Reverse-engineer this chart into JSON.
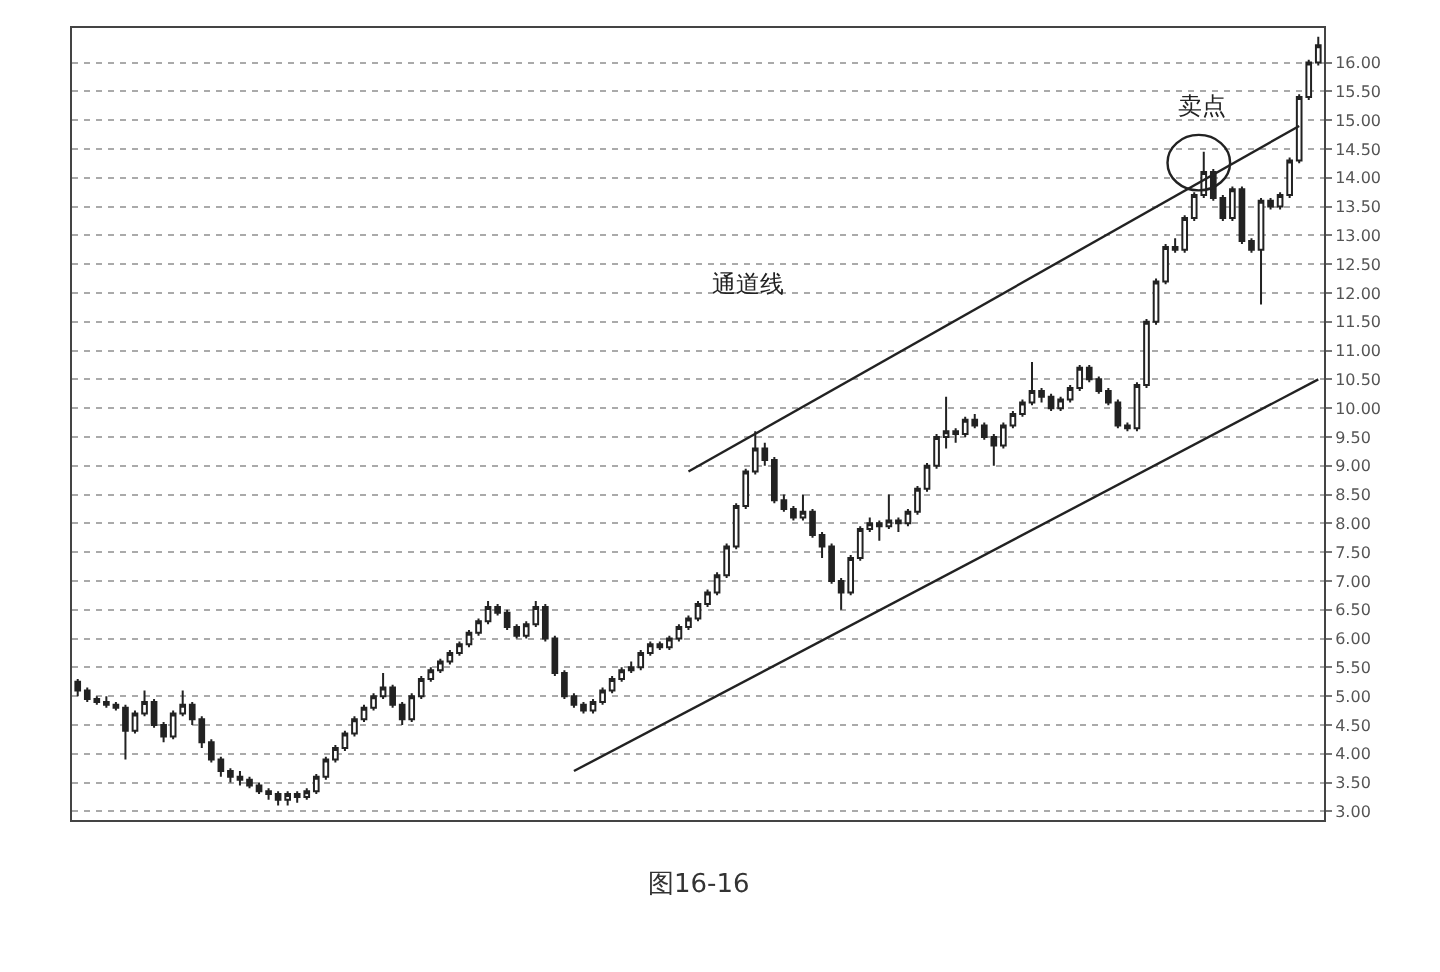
{
  "chart_data": {
    "type": "candlestick",
    "categories": [
      null,
      null,
      null,
      null,
      null,
      null,
      null,
      null,
      null,
      null,
      null,
      null,
      null,
      null,
      null,
      null,
      null,
      null,
      null,
      null,
      null,
      null,
      null,
      null,
      null,
      null,
      null,
      null,
      null,
      null,
      null,
      null,
      null,
      null,
      null,
      null,
      null,
      null,
      null,
      null,
      null,
      null,
      null,
      null,
      null,
      null,
      null,
      null,
      null,
      null,
      null,
      null,
      null,
      null,
      null,
      null,
      null,
      null,
      null,
      null,
      null,
      null,
      null,
      null,
      null,
      null,
      null,
      null,
      null,
      null,
      null,
      null,
      null,
      null,
      null,
      null,
      null,
      null,
      null,
      null,
      null,
      null,
      null,
      null,
      null,
      null,
      null,
      null,
      null,
      null,
      null,
      null,
      null,
      null,
      null,
      null,
      null,
      null,
      null,
      null,
      null,
      null,
      null,
      null,
      null,
      null,
      null,
      null,
      null,
      null,
      null,
      null,
      null,
      null,
      null,
      null,
      null,
      null,
      null,
      null,
      null,
      null,
      null,
      null,
      null,
      null,
      null,
      null,
      null,
      null,
      null
    ],
    "series": [
      {
        "color": "#222222",
        "ohlc": [
          [
            5.25,
            5.3,
            5.0,
            5.1
          ],
          [
            5.1,
            5.15,
            4.9,
            4.95
          ],
          [
            4.95,
            5.0,
            4.85,
            4.9
          ],
          [
            4.9,
            5.0,
            4.8,
            4.85
          ],
          [
            4.85,
            4.9,
            4.75,
            4.8
          ],
          [
            4.8,
            4.85,
            3.9,
            4.4
          ],
          [
            4.4,
            4.75,
            4.35,
            4.7
          ],
          [
            4.7,
            5.1,
            4.65,
            4.9
          ],
          [
            4.9,
            4.95,
            4.45,
            4.5
          ],
          [
            4.5,
            4.55,
            4.2,
            4.3
          ],
          [
            4.3,
            4.75,
            4.25,
            4.7
          ],
          [
            4.7,
            5.1,
            4.65,
            4.85
          ],
          [
            4.85,
            4.9,
            4.5,
            4.6
          ],
          [
            4.6,
            4.65,
            4.1,
            4.2
          ],
          [
            4.2,
            4.25,
            3.85,
            3.9
          ],
          [
            3.9,
            3.95,
            3.6,
            3.7
          ],
          [
            3.7,
            3.75,
            3.5,
            3.6
          ],
          [
            3.6,
            3.7,
            3.45,
            3.55
          ],
          [
            3.55,
            3.6,
            3.4,
            3.45
          ],
          [
            3.45,
            3.5,
            3.3,
            3.35
          ],
          [
            3.35,
            3.4,
            3.2,
            3.3
          ],
          [
            3.3,
            3.35,
            3.1,
            3.2
          ],
          [
            3.2,
            3.35,
            3.1,
            3.3
          ],
          [
            3.3,
            3.35,
            3.15,
            3.25
          ],
          [
            3.25,
            3.4,
            3.2,
            3.35
          ],
          [
            3.35,
            3.65,
            3.3,
            3.6
          ],
          [
            3.6,
            3.95,
            3.55,
            3.9
          ],
          [
            3.9,
            4.15,
            3.85,
            4.1
          ],
          [
            4.1,
            4.4,
            4.05,
            4.35
          ],
          [
            4.35,
            4.65,
            4.3,
            4.6
          ],
          [
            4.6,
            4.85,
            4.55,
            4.8
          ],
          [
            4.8,
            5.05,
            4.75,
            5.0
          ],
          [
            5.0,
            5.4,
            4.95,
            5.15
          ],
          [
            5.15,
            5.2,
            4.8,
            4.85
          ],
          [
            4.85,
            4.9,
            4.5,
            4.6
          ],
          [
            4.6,
            5.05,
            4.55,
            5.0
          ],
          [
            5.0,
            5.35,
            4.95,
            5.3
          ],
          [
            5.3,
            5.5,
            5.25,
            5.45
          ],
          [
            5.45,
            5.65,
            5.4,
            5.6
          ],
          [
            5.6,
            5.8,
            5.55,
            5.75
          ],
          [
            5.75,
            5.95,
            5.7,
            5.9
          ],
          [
            5.9,
            6.15,
            5.85,
            6.1
          ],
          [
            6.1,
            6.35,
            6.05,
            6.3
          ],
          [
            6.3,
            6.65,
            6.25,
            6.55
          ],
          [
            6.55,
            6.6,
            6.4,
            6.45
          ],
          [
            6.45,
            6.5,
            6.15,
            6.2
          ],
          [
            6.2,
            6.25,
            6.0,
            6.05
          ],
          [
            6.05,
            6.3,
            6.0,
            6.25
          ],
          [
            6.25,
            6.65,
            6.2,
            6.55
          ],
          [
            6.55,
            6.6,
            5.95,
            6.0
          ],
          [
            6.0,
            6.05,
            5.35,
            5.4
          ],
          [
            5.4,
            5.45,
            4.95,
            5.0
          ],
          [
            5.0,
            5.05,
            4.8,
            4.85
          ],
          [
            4.85,
            4.9,
            4.7,
            4.75
          ],
          [
            4.75,
            4.95,
            4.7,
            4.9
          ],
          [
            4.9,
            5.15,
            4.85,
            5.1
          ],
          [
            5.1,
            5.35,
            5.05,
            5.3
          ],
          [
            5.3,
            5.5,
            5.25,
            5.45
          ],
          [
            5.45,
            5.6,
            5.4,
            5.5
          ],
          [
            5.5,
            5.8,
            5.45,
            5.75
          ],
          [
            5.75,
            5.95,
            5.7,
            5.9
          ],
          [
            5.9,
            5.95,
            5.8,
            5.85
          ],
          [
            5.85,
            6.05,
            5.8,
            6.0
          ],
          [
            6.0,
            6.25,
            5.95,
            6.2
          ],
          [
            6.2,
            6.4,
            6.15,
            6.35
          ],
          [
            6.35,
            6.65,
            6.3,
            6.6
          ],
          [
            6.6,
            6.85,
            6.55,
            6.8
          ],
          [
            6.8,
            7.15,
            6.75,
            7.1
          ],
          [
            7.1,
            7.65,
            7.05,
            7.6
          ],
          [
            7.6,
            8.35,
            7.55,
            8.3
          ],
          [
            8.3,
            8.95,
            8.25,
            8.9
          ],
          [
            8.9,
            9.6,
            8.85,
            9.3
          ],
          [
            9.3,
            9.4,
            9.0,
            9.1
          ],
          [
            9.1,
            9.15,
            8.35,
            8.4
          ],
          [
            8.4,
            8.5,
            8.2,
            8.25
          ],
          [
            8.25,
            8.3,
            8.05,
            8.1
          ],
          [
            8.1,
            8.5,
            8.05,
            8.2
          ],
          [
            8.2,
            8.25,
            7.75,
            7.8
          ],
          [
            7.8,
            7.85,
            7.4,
            7.6
          ],
          [
            7.6,
            7.65,
            6.95,
            7.0
          ],
          [
            7.0,
            7.05,
            6.5,
            6.8
          ],
          [
            6.8,
            7.45,
            6.75,
            7.4
          ],
          [
            7.4,
            7.95,
            7.35,
            7.9
          ],
          [
            7.9,
            8.1,
            7.85,
            8.0
          ],
          [
            8.0,
            8.05,
            7.7,
            7.95
          ],
          [
            7.95,
            8.5,
            7.9,
            8.05
          ],
          [
            8.05,
            8.1,
            7.85,
            8.0
          ],
          [
            8.0,
            8.25,
            7.95,
            8.2
          ],
          [
            8.2,
            8.65,
            8.15,
            8.6
          ],
          [
            8.6,
            9.05,
            8.55,
            9.0
          ],
          [
            9.0,
            9.55,
            8.95,
            9.5
          ],
          [
            9.5,
            10.2,
            9.3,
            9.6
          ],
          [
            9.6,
            9.65,
            9.4,
            9.55
          ],
          [
            9.55,
            9.85,
            9.5,
            9.8
          ],
          [
            9.8,
            9.9,
            9.65,
            9.7
          ],
          [
            9.7,
            9.75,
            9.45,
            9.5
          ],
          [
            9.5,
            9.55,
            9.0,
            9.35
          ],
          [
            9.35,
            9.75,
            9.3,
            9.7
          ],
          [
            9.7,
            9.95,
            9.65,
            9.9
          ],
          [
            9.9,
            10.15,
            9.85,
            10.1
          ],
          [
            10.1,
            10.8,
            10.05,
            10.3
          ],
          [
            10.3,
            10.35,
            10.1,
            10.2
          ],
          [
            10.2,
            10.25,
            9.95,
            10.0
          ],
          [
            10.0,
            10.2,
            9.95,
            10.15
          ],
          [
            10.15,
            10.4,
            10.1,
            10.35
          ],
          [
            10.35,
            10.75,
            10.3,
            10.7
          ],
          [
            10.7,
            10.75,
            10.45,
            10.5
          ],
          [
            10.5,
            10.55,
            10.25,
            10.3
          ],
          [
            10.3,
            10.35,
            10.05,
            10.1
          ],
          [
            10.1,
            10.15,
            9.65,
            9.7
          ],
          [
            9.7,
            9.75,
            9.6,
            9.65
          ],
          [
            9.65,
            10.45,
            9.6,
            10.4
          ],
          [
            10.4,
            11.55,
            10.35,
            11.5
          ],
          [
            11.5,
            12.25,
            11.45,
            12.2
          ],
          [
            12.2,
            12.85,
            12.15,
            12.8
          ],
          [
            12.8,
            12.95,
            12.7,
            12.75
          ],
          [
            12.75,
            13.35,
            12.7,
            13.3
          ],
          [
            13.3,
            13.75,
            13.25,
            13.7
          ],
          [
            13.7,
            14.45,
            13.65,
            14.1
          ],
          [
            14.1,
            14.15,
            13.6,
            13.65
          ],
          [
            13.65,
            13.7,
            13.25,
            13.3
          ],
          [
            13.3,
            13.85,
            13.25,
            13.8
          ],
          [
            13.8,
            13.85,
            12.85,
            12.9
          ],
          [
            12.9,
            12.95,
            12.7,
            12.75
          ],
          [
            12.75,
            13.65,
            11.8,
            13.6
          ],
          [
            13.6,
            13.65,
            13.45,
            13.5
          ],
          [
            13.5,
            13.75,
            13.45,
            13.7
          ],
          [
            13.7,
            14.35,
            13.65,
            14.3
          ],
          [
            14.3,
            15.45,
            14.25,
            15.4
          ],
          [
            15.4,
            16.05,
            15.35,
            16.0
          ],
          [
            16.0,
            16.45,
            15.95,
            16.3
          ]
        ]
      },
      {
        "type": "line",
        "color": "#222222",
        "values": [
          null,
          null,
          null,
          null,
          null,
          null,
          null,
          null,
          null,
          null,
          null,
          null,
          null,
          null,
          null,
          null,
          null,
          null,
          null,
          null,
          null,
          null,
          null,
          null,
          null,
          null,
          null,
          null,
          null,
          null,
          null,
          null,
          null,
          null,
          null,
          null,
          null,
          null,
          null,
          null,
          null,
          null,
          null,
          null,
          null,
          null,
          null,
          null,
          null,
          null,
          null,
          null,
          null,
          null,
          null,
          null,
          null,
          null,
          null,
          null,
          null,
          null,
          null,
          null,
          8.9,
          null,
          null,
          null,
          null,
          null,
          null,
          null,
          null,
          null,
          null,
          null,
          null,
          null,
          null,
          null,
          null,
          null,
          null,
          null,
          null,
          null,
          null,
          null,
          null,
          null,
          null,
          null,
          null,
          null,
          null,
          null,
          null,
          null,
          null,
          null,
          null,
          null,
          null,
          null,
          null,
          null,
          null,
          null,
          null,
          null,
          null,
          null,
          null,
          null,
          null,
          null,
          null,
          null,
          null,
          null,
          null,
          null,
          null,
          null,
          null,
          null,
          null,
          null,
          14.9,
          null,
          null
        ]
      },
      {
        "type": "line",
        "color": "#222222",
        "values": [
          null,
          null,
          null,
          null,
          null,
          null,
          null,
          null,
          null,
          null,
          null,
          null,
          null,
          null,
          null,
          null,
          null,
          null,
          null,
          null,
          null,
          null,
          null,
          null,
          null,
          null,
          null,
          null,
          null,
          null,
          null,
          null,
          null,
          null,
          null,
          null,
          null,
          null,
          null,
          null,
          null,
          null,
          null,
          null,
          null,
          null,
          null,
          null,
          null,
          null,
          null,
          null,
          3.7,
          null,
          null,
          null,
          null,
          null,
          null,
          null,
          null,
          null,
          null,
          null,
          null,
          null,
          null,
          null,
          null,
          null,
          null,
          null,
          null,
          null,
          null,
          null,
          null,
          null,
          null,
          null,
          null,
          null,
          null,
          null,
          null,
          null,
          null,
          null,
          null,
          null,
          null,
          null,
          null,
          null,
          null,
          null,
          null,
          null,
          null,
          null,
          null,
          null,
          null,
          null,
          null,
          null,
          null,
          null,
          null,
          null,
          null,
          null,
          null,
          null,
          null,
          null,
          null,
          null,
          null,
          null,
          null,
          null,
          null,
          null,
          null,
          null,
          null,
          null,
          null,
          null,
          10.5
        ]
      }
    ],
    "ylim": [
      2.85,
      16.6
    ],
    "yticks": [
      {
        "value": 3,
        "label": "3.00"
      },
      {
        "value": 3.5,
        "label": "3.50"
      },
      {
        "value": 4,
        "label": "4.00"
      },
      {
        "value": 4.5,
        "label": "4.50"
      },
      {
        "value": 5,
        "label": "5.00"
      },
      {
        "value": 5.5,
        "label": "5.50"
      },
      {
        "value": 6,
        "label": "6.00"
      },
      {
        "value": 6.5,
        "label": "6.50"
      },
      {
        "value": 7,
        "label": "7.00"
      },
      {
        "value": 7.5,
        "label": "7.50"
      },
      {
        "value": 8,
        "label": "8.00"
      },
      {
        "value": 8.5,
        "label": "8.50"
      },
      {
        "value": 9,
        "label": "9.00"
      },
      {
        "value": 9.5,
        "label": "9.50"
      },
      {
        "value": 10,
        "label": "10.00"
      },
      {
        "value": 10.5,
        "label": "10.50"
      },
      {
        "value": 11,
        "label": "11.00"
      },
      {
        "value": 11.5,
        "label": "11.50"
      },
      {
        "value": 12,
        "label": "12.00"
      },
      {
        "value": 12.5,
        "label": "12.50"
      },
      {
        "value": 13,
        "label": "13.00"
      },
      {
        "value": 13.5,
        "label": "13.50"
      },
      {
        "value": 14,
        "label": "14.00"
      },
      {
        "value": 14.5,
        "label": "14.50"
      },
      {
        "value": 15,
        "label": "15.00"
      },
      {
        "value": 15.5,
        "label": "15.50"
      },
      {
        "value": 16,
        "label": "16.00"
      }
    ],
    "grid": "y",
    "tick_labels": "y",
    "annotations": [
      "通道线",
      "卖点",
      "图16-16"
    ]
  }
}
